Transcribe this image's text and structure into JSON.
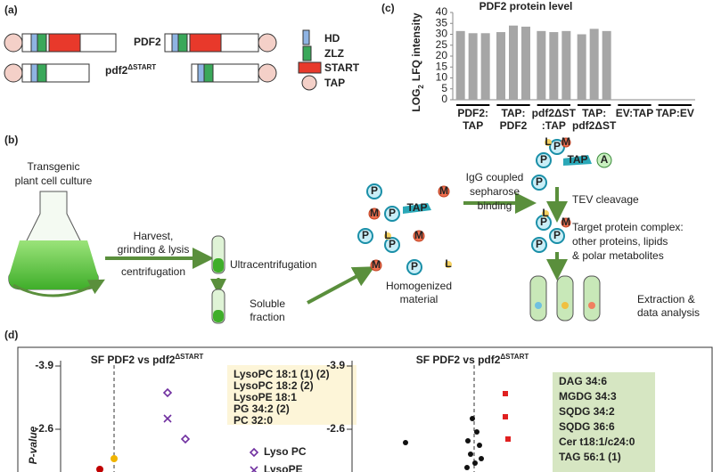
{
  "panel_a": {
    "label": "(a)",
    "constructs": [
      {
        "name": "PDF2"
      },
      {
        "name": "pdf2",
        "name_sup": "ΔSTART"
      }
    ],
    "legend": [
      "HD",
      "ZLZ",
      "START",
      "TAP"
    ]
  },
  "chart_data": {
    "type": "bar",
    "panel_label": "(c)",
    "title": "PDF2 protein level",
    "ylabel": {
      "main": "LOG",
      "sub": "2",
      "rest": "LFQ intensity"
    },
    "categories": [
      [
        "PDF2:",
        "TAP"
      ],
      [
        "TAP:",
        "PDF2"
      ],
      [
        "pdf2ΔST",
        ":TAP"
      ],
      [
        "TAP:",
        "pdf2ΔST"
      ],
      [
        "EV:TAP"
      ],
      [
        "TAP:EV"
      ]
    ],
    "values": [
      [
        31.5,
        30.5,
        30.5
      ],
      [
        31,
        34,
        33.5
      ],
      [
        31.5,
        31,
        31.5
      ],
      [
        30,
        32.5,
        31.5
      ],
      [
        null,
        null,
        null
      ],
      [
        null,
        null,
        null
      ]
    ],
    "color": "#a6a6a6",
    "ylim": [
      0,
      40
    ],
    "yticks": [
      0,
      5,
      10,
      15,
      20,
      25,
      30,
      35,
      40
    ]
  },
  "panel_b": {
    "label": "(b)",
    "culture": [
      "Transgenic",
      "plant cell culture"
    ],
    "harvest": [
      "Harvest,",
      "grinding & lysis"
    ],
    "centrifugation": "centrifugation",
    "ultracentrifugation": "Ultracentrifugation",
    "soluble": [
      "Soluble",
      "fraction"
    ],
    "homogenized": [
      "Homogenized",
      "material"
    ],
    "binding": [
      "IgG coupled",
      "sepharose",
      "binding"
    ],
    "tev": "TEV cleavage",
    "target": [
      "Target protein complex:",
      "other proteins, lipids",
      "& polar metabolites"
    ],
    "extraction": [
      "Extraction &",
      "data analysis"
    ],
    "molecules": {
      "P": "P",
      "M": "M",
      "L": "L",
      "TAP": "TAP",
      "A": "A"
    }
  },
  "panel_d": {
    "label": "(d)",
    "left": {
      "title": "SF PDF2 vs pdf2",
      "title_sup": "ΔSTART",
      "yticks": [
        "-3.9",
        "-2.6"
      ],
      "ylabel": "P-value",
      "box": [
        {
          "text": "LysoPC 18:1 (1) (2)",
          "color": "#7030a0"
        },
        {
          "text": "LysoPC 18:2 (2)",
          "color": "#7030a0"
        },
        {
          "text": "LysoPE  18:1",
          "color": "#7030a0"
        },
        {
          "text": "PG 34:2 (2)",
          "color": "#f0b400"
        },
        {
          "text": "PC 32:0",
          "color": "#c00000"
        }
      ],
      "legend": [
        "Lyso PC",
        "LysoPE"
      ]
    },
    "right": {
      "title": "SF PDF2 vs pdf2",
      "title_sup": "ΔSTART",
      "yticks": [
        "-3.9",
        "-2.6"
      ],
      "box": [
        "DAG 34:6",
        "MGDG 34:3",
        "SQDG 34:2",
        "SQDG 36:6",
        "Cer t18:1/c24:0",
        "TAG 56:1 (1)"
      ]
    }
  }
}
